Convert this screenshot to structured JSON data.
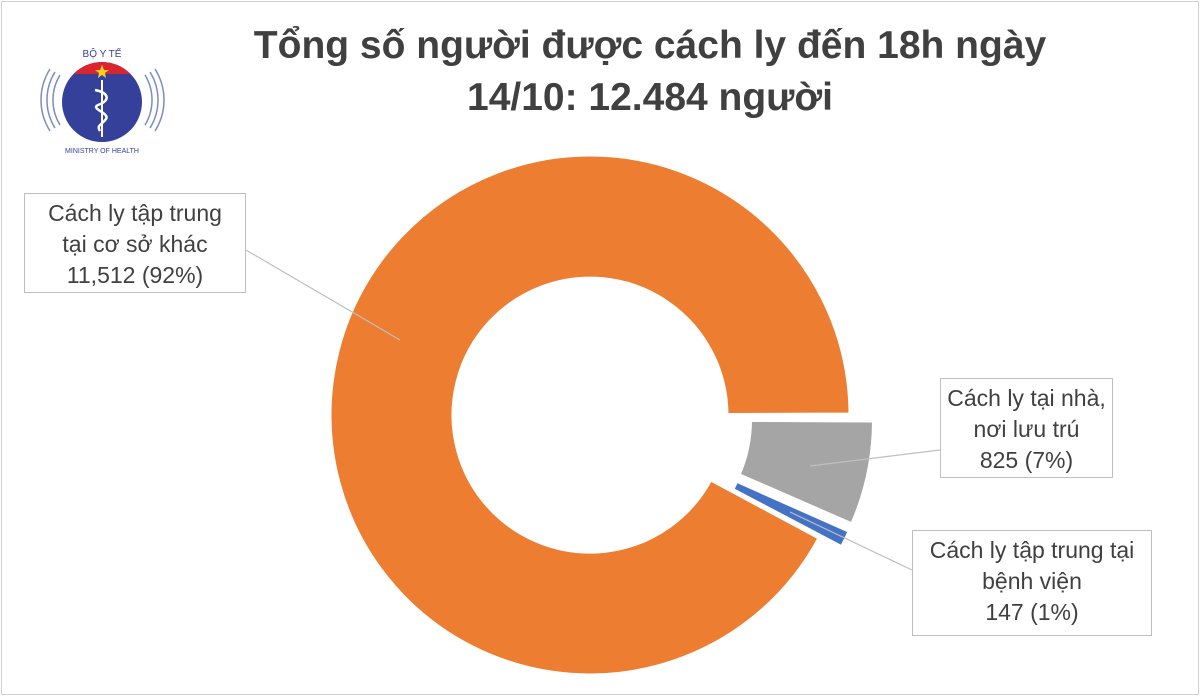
{
  "logo": {
    "top_text": "BỘ Y TẾ",
    "bottom_text": "MINISTRY OF HEALTH"
  },
  "title": {
    "line1": "Tổng số người được cách ly đến 18h ngày",
    "line2": "14/10: 12.484 người"
  },
  "chart_data": {
    "type": "pie",
    "subtype": "donut",
    "total": 12484,
    "slices": [
      {
        "name_line1": "Cách ly tại nhà,",
        "name_line2": "nơi lưu trú",
        "value": 825,
        "label": "825 (7%)",
        "color": "#a5a5a5",
        "exploded": true
      },
      {
        "name_line1": "Cách ly tập trung tại",
        "name_line2": "bệnh viện",
        "value": 147,
        "label": "147 (1%)",
        "color": "#4472c4",
        "exploded": true
      },
      {
        "name_line1": "Cách ly tập trung",
        "name_line2": "tại cơ sở khác",
        "value": 11512,
        "label": "11,512 (92%)",
        "color": "#ed7d31",
        "exploded": false
      }
    ],
    "legend": "none"
  }
}
